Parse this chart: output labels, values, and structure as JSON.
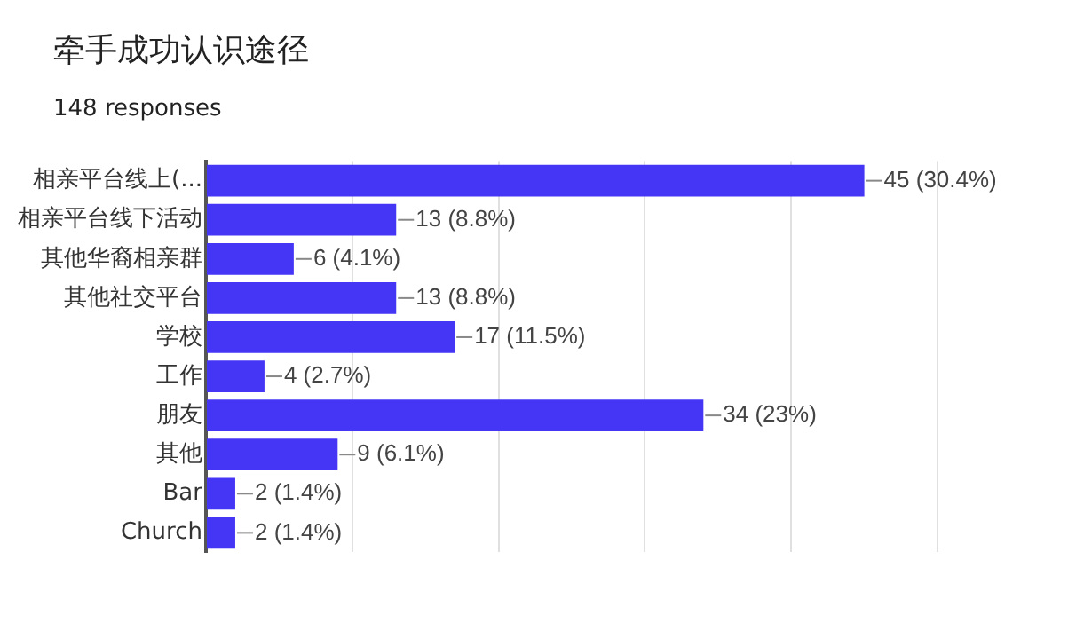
{
  "chart_data": {
    "type": "bar",
    "orientation": "horizontal",
    "title": "牵手成功认识途径",
    "subtitle": "148 responses",
    "categories": [
      "相亲平台线上(...",
      "相亲平台线下活动",
      "其他华裔相亲群",
      "其他社交平台",
      "学校",
      "工作",
      "朋友",
      "其他",
      "Bar",
      "Church"
    ],
    "values": [
      45,
      13,
      6,
      13,
      17,
      4,
      34,
      9,
      2,
      2
    ],
    "value_labels": [
      "45 (30.4%)",
      "13 (8.8%)",
      "6 (4.1%)",
      "13 (8.8%)",
      "17 (11.5%)",
      "4 (2.7%)",
      "34 (23%)",
      "9 (6.1%)",
      "2 (1.4%)",
      "2 (1.4%)"
    ],
    "color": "#4536f5",
    "xlim": [
      0,
      50
    ],
    "xticks": [
      {
        "value": 0,
        "label": null
      },
      {
        "value": 10,
        "label": null
      },
      {
        "value": 20,
        "label": null
      },
      {
        "value": 30,
        "label": null
      },
      {
        "value": 40,
        "label": null
      },
      {
        "value": 50,
        "label": null
      }
    ],
    "tick_labels": "y",
    "grid": "x",
    "legend": false
  }
}
